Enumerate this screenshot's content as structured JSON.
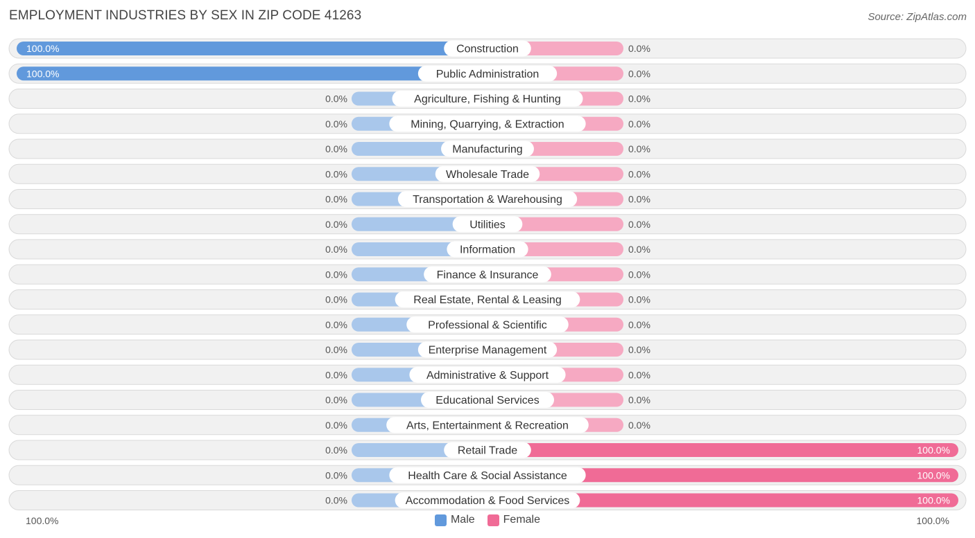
{
  "title": "EMPLOYMENT INDUSTRIES BY SEX IN ZIP CODE 41263",
  "source": "Source: ZipAtlas.com",
  "colors": {
    "male_strong": "#6199dc",
    "male_light": "#a9c7eb",
    "female_strong": "#f06b96",
    "female_light": "#f6a9c2",
    "track": "#f1f1f1",
    "track_border": "#d9d9d9"
  },
  "legend": {
    "male": "Male",
    "female": "Female"
  },
  "axis": {
    "left_label": "100.0%",
    "right_label": "100.0%"
  },
  "chart_data": {
    "type": "bar",
    "orientation": "horizontal-diverging",
    "title": "EMPLOYMENT INDUSTRIES BY SEX IN ZIP CODE 41263",
    "xlim": [
      -100,
      100
    ],
    "categories": [
      "Construction",
      "Public Administration",
      "Agriculture, Fishing & Hunting",
      "Mining, Quarrying, & Extraction",
      "Manufacturing",
      "Wholesale Trade",
      "Transportation & Warehousing",
      "Utilities",
      "Information",
      "Finance & Insurance",
      "Real Estate, Rental & Leasing",
      "Professional & Scientific",
      "Enterprise Management",
      "Administrative & Support",
      "Educational Services",
      "Arts, Entertainment & Recreation",
      "Retail Trade",
      "Health Care & Social Assistance",
      "Accommodation & Food Services"
    ],
    "series": [
      {
        "name": "Male",
        "values": [
          100,
          100,
          0,
          0,
          0,
          0,
          0,
          0,
          0,
          0,
          0,
          0,
          0,
          0,
          0,
          0,
          0,
          0,
          0
        ]
      },
      {
        "name": "Female",
        "values": [
          0,
          0,
          0,
          0,
          0,
          0,
          0,
          0,
          0,
          0,
          0,
          0,
          0,
          0,
          0,
          0,
          100,
          100,
          100
        ]
      }
    ],
    "male_labels": [
      "100.0%",
      "100.0%",
      "0.0%",
      "0.0%",
      "0.0%",
      "0.0%",
      "0.0%",
      "0.0%",
      "0.0%",
      "0.0%",
      "0.0%",
      "0.0%",
      "0.0%",
      "0.0%",
      "0.0%",
      "0.0%",
      "0.0%",
      "0.0%",
      "0.0%"
    ],
    "female_labels": [
      "0.0%",
      "0.0%",
      "0.0%",
      "0.0%",
      "0.0%",
      "0.0%",
      "0.0%",
      "0.0%",
      "0.0%",
      "0.0%",
      "0.0%",
      "0.0%",
      "0.0%",
      "0.0%",
      "0.0%",
      "0.0%",
      "100.0%",
      "100.0%",
      "100.0%"
    ],
    "legend_position": "bottom-center"
  }
}
